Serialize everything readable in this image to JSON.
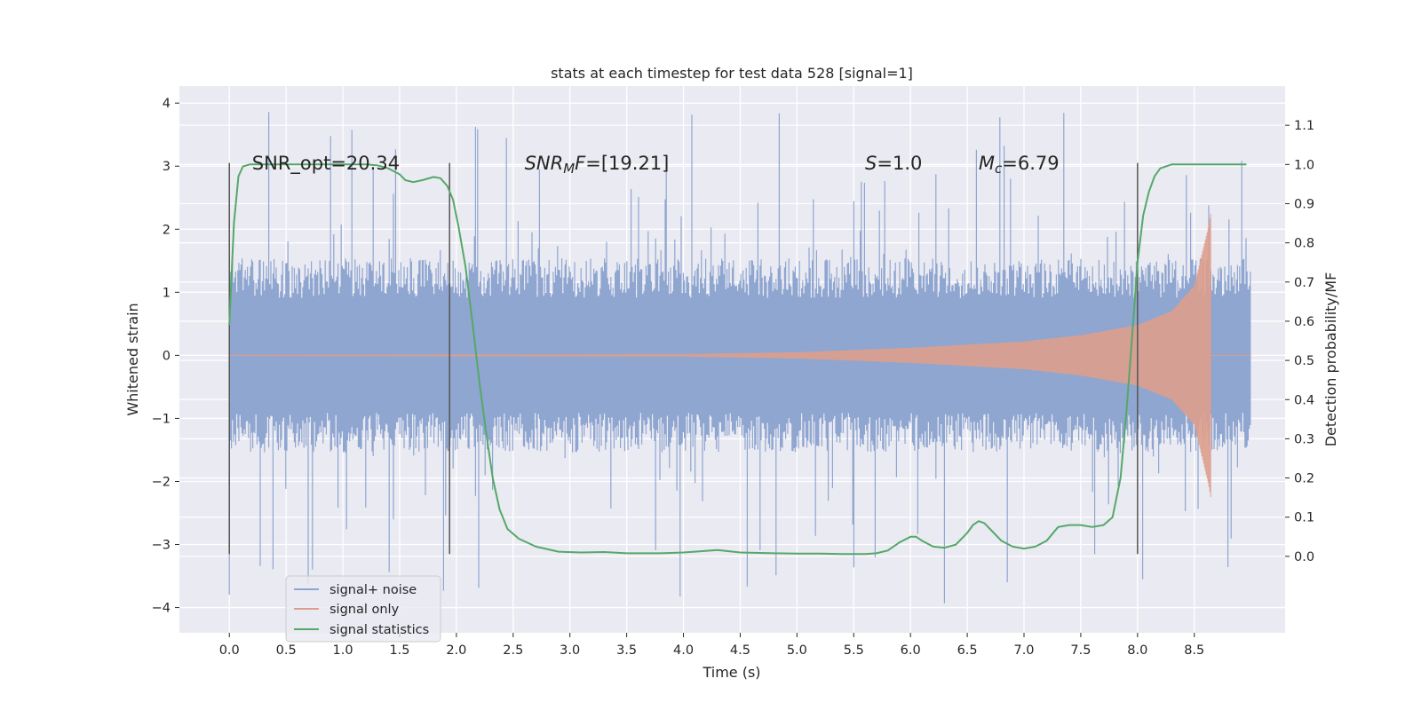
{
  "chart_data": {
    "type": "line",
    "title": "stats at each timestep for test data 528 [signal=1]",
    "xlabel": "Time (s)",
    "ylabel": "Whitened strain",
    "y2label": "Detection probability/MF",
    "xlim": [
      -0.44,
      9.3
    ],
    "ylim": [
      -4.4,
      4.27
    ],
    "y2lim": [
      -0.195,
      1.2
    ],
    "xticks": [
      0.0,
      0.5,
      1.0,
      1.5,
      2.0,
      2.5,
      3.0,
      3.5,
      4.0,
      4.5,
      5.0,
      5.5,
      6.0,
      6.5,
      7.0,
      7.5,
      8.0,
      8.5
    ],
    "xtick_labels": [
      "0.0",
      "0.5",
      "1.0",
      "1.5",
      "2.0",
      "2.5",
      "3.0",
      "3.5",
      "4.0",
      "4.5",
      "5.0",
      "5.5",
      "6.0",
      "6.5",
      "7.0",
      "7.5",
      "8.0",
      "8.5"
    ],
    "yticks": [
      4,
      3,
      2,
      1,
      0,
      -1,
      -2,
      -3,
      -4
    ],
    "ytick_labels": [
      "4",
      "3",
      "2",
      "1",
      "0",
      "−1",
      "−2",
      "−3",
      "−4"
    ],
    "y2ticks": [
      1.1,
      1.0,
      0.9,
      0.8,
      0.7,
      0.6,
      0.5,
      0.4,
      0.3,
      0.2,
      0.1,
      0.0
    ],
    "y2tick_labels": [
      "1.1",
      "1.0",
      "0.9",
      "0.8",
      "0.7",
      "0.6",
      "0.5",
      "0.4",
      "0.3",
      "0.2",
      "0.1",
      "0.0"
    ],
    "grid": true,
    "legend_position": "bottom-left",
    "noise": {
      "t_start": 0.0,
      "t_end": 9.0,
      "core_amplitude": 1.4,
      "spike_max": 3.9,
      "spike_min": -4.0
    },
    "signal_only": {
      "t_start": 0.0,
      "t_merger": 8.65,
      "t_end": 9.0,
      "envelope": [
        [
          0.0,
          0.01
        ],
        [
          4.0,
          0.02
        ],
        [
          5.0,
          0.05
        ],
        [
          6.0,
          0.12
        ],
        [
          7.0,
          0.22
        ],
        [
          7.5,
          0.32
        ],
        [
          8.0,
          0.48
        ],
        [
          8.3,
          0.7
        ],
        [
          8.5,
          1.1
        ],
        [
          8.62,
          2.0
        ],
        [
          8.65,
          2.3
        ]
      ]
    },
    "vertical_lines": [
      {
        "x": 0.0,
        "ymin": -3.15,
        "ymax": 3.05
      },
      {
        "x": 1.94,
        "ymin": -3.15,
        "ymax": 3.05
      },
      {
        "x": 8.0,
        "ymin": -3.15,
        "ymax": 3.05
      }
    ],
    "series": [
      {
        "name": "signal+ noise",
        "color": "#8fa6d0",
        "axis": "left"
      },
      {
        "name": "signal only",
        "color": "#dd9f8c",
        "axis": "left"
      },
      {
        "name": "signal statistics",
        "color": "#55a868",
        "axis": "right",
        "x": [
          0.0,
          0.04,
          0.08,
          0.12,
          0.18,
          0.25,
          0.35,
          0.5,
          0.7,
          1.0,
          1.2,
          1.3,
          1.4,
          1.5,
          1.55,
          1.62,
          1.7,
          1.8,
          1.86,
          1.92,
          1.97,
          2.02,
          2.08,
          2.14,
          2.2,
          2.26,
          2.32,
          2.38,
          2.45,
          2.55,
          2.7,
          2.9,
          3.1,
          3.3,
          3.5,
          3.8,
          4.0,
          4.1,
          4.3,
          4.5,
          4.8,
          5.0,
          5.2,
          5.4,
          5.6,
          5.7,
          5.8,
          5.9,
          6.0,
          6.05,
          6.1,
          6.2,
          6.3,
          6.4,
          6.5,
          6.55,
          6.6,
          6.65,
          6.7,
          6.8,
          6.9,
          7.0,
          7.1,
          7.2,
          7.3,
          7.4,
          7.5,
          7.6,
          7.7,
          7.78,
          7.85,
          7.9,
          7.95,
          8.0,
          8.05,
          8.1,
          8.15,
          8.2,
          8.3,
          8.5,
          8.7,
          8.9,
          8.96
        ],
        "y": [
          0.59,
          0.85,
          0.97,
          0.995,
          1.0,
          1.0,
          1.0,
          1.0,
          1.0,
          1.0,
          1.0,
          0.998,
          0.99,
          0.975,
          0.96,
          0.955,
          0.96,
          0.968,
          0.965,
          0.945,
          0.91,
          0.84,
          0.74,
          0.6,
          0.45,
          0.32,
          0.2,
          0.12,
          0.07,
          0.045,
          0.025,
          0.012,
          0.01,
          0.011,
          0.008,
          0.008,
          0.01,
          0.012,
          0.016,
          0.01,
          0.008,
          0.007,
          0.007,
          0.006,
          0.006,
          0.008,
          0.015,
          0.035,
          0.05,
          0.05,
          0.04,
          0.025,
          0.022,
          0.03,
          0.06,
          0.08,
          0.09,
          0.085,
          0.07,
          0.04,
          0.025,
          0.02,
          0.025,
          0.04,
          0.075,
          0.08,
          0.08,
          0.075,
          0.08,
          0.1,
          0.2,
          0.36,
          0.55,
          0.75,
          0.87,
          0.93,
          0.97,
          0.99,
          1.0,
          1.0,
          1.0,
          1.0,
          1.0
        ]
      }
    ],
    "annotations": [
      {
        "id": "snr_opt",
        "text": "SNR_opt=20.34",
        "x": 0.2,
        "y": 2.95
      },
      {
        "id": "snr_mf",
        "text": "[19.21]",
        "x": 2.6,
        "y": 2.95
      },
      {
        "id": "s_stat",
        "text": "=1.0",
        "x": 5.6,
        "y": 2.95
      },
      {
        "id": "mc",
        "text": "=6.79",
        "x": 6.6,
        "y": 2.95
      }
    ],
    "annotation_math": {
      "snr_mf_main": "SNR",
      "snr_mf_sub": "M",
      "snr_mf_mid": "F=",
      "s_letter": "S",
      "mc_letter": "M",
      "mc_sub": "c"
    }
  }
}
